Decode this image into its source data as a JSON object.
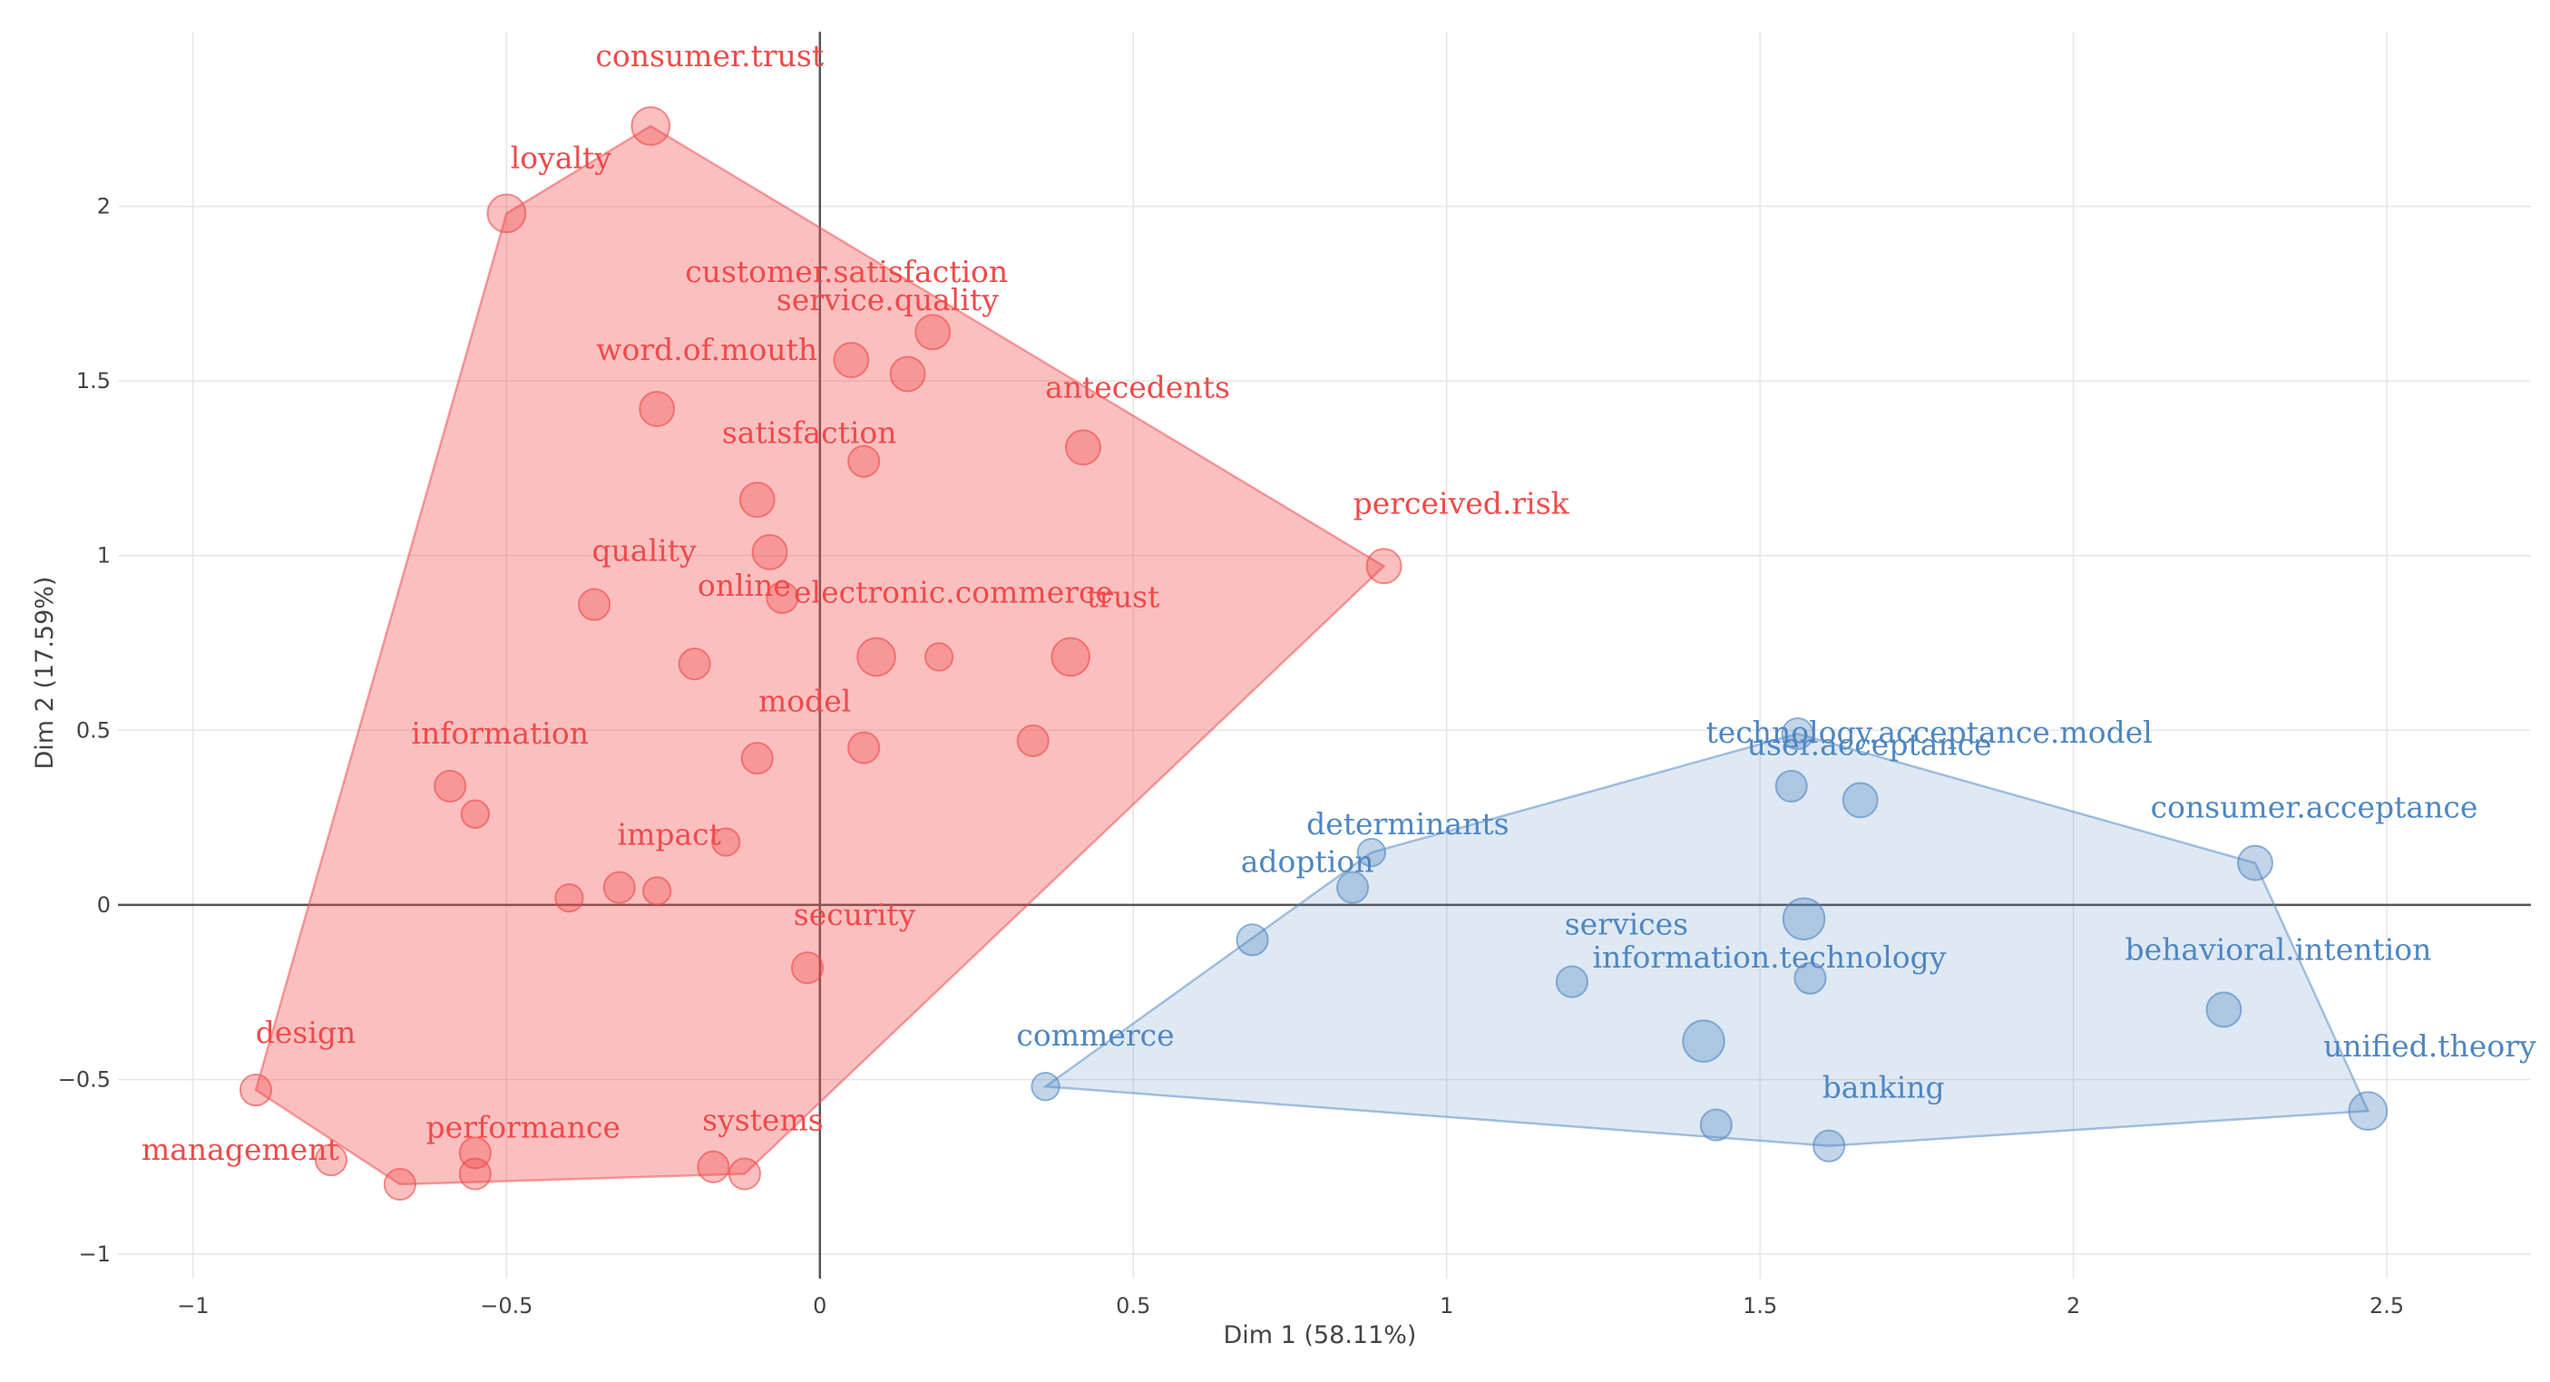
{
  "chart_data": {
    "type": "scatter",
    "xlabel": "Dim 1 (58.11%)",
    "ylabel": "Dim 2 (17.59%)",
    "xlim": [
      -1.12,
      2.73
    ],
    "ylim": [
      -1.07,
      2.5
    ],
    "xticks": [
      -1,
      -0.5,
      0,
      0.5,
      1,
      1.5,
      2,
      2.5
    ],
    "yticks": [
      -1,
      -0.5,
      0,
      0.5,
      1,
      1.5,
      2
    ],
    "xtick_labels": [
      "−1",
      "−0.5",
      "0",
      "0.5",
      "1",
      "1.5",
      "2",
      "2.5"
    ],
    "ytick_labels": [
      "−1",
      "−0.5",
      "0",
      "0.5",
      "1",
      "1.5",
      "2"
    ],
    "grid": true,
    "clusters": [
      {
        "name": "cluster-1",
        "color": "#f04a4a",
        "hull": [
          [
            -0.27,
            2.23
          ],
          [
            0.9,
            0.97
          ],
          [
            -0.12,
            -0.77
          ],
          [
            -0.67,
            -0.8
          ],
          [
            -0.9,
            -0.53
          ],
          [
            -0.5,
            1.98
          ]
        ],
        "points": [
          {
            "label": "consumer.trust",
            "x": -0.27,
            "y": 2.23,
            "size": 11
          },
          {
            "label": "loyalty",
            "x": -0.5,
            "y": 1.98,
            "size": 11
          },
          {
            "label": "service.quality",
            "x": 0.05,
            "y": 1.56,
            "size": 10
          },
          {
            "label": "customer.satisfaction",
            "x": 0.18,
            "y": 1.64,
            "size": 10
          },
          {
            "label": "word.of.mouth",
            "x": -0.26,
            "y": 1.42,
            "size": 10
          },
          {
            "label": "antecedents",
            "x": 0.42,
            "y": 1.31,
            "size": 10
          },
          {
            "label": "satisfaction",
            "x": 0.07,
            "y": 1.27,
            "size": 9
          },
          {
            "label": "perceived.risk",
            "x": 0.9,
            "y": 0.97,
            "size": 10
          },
          {
            "label": "quality",
            "x": -0.36,
            "y": 0.86,
            "size": 9
          },
          {
            "label": "online",
            "x": -0.06,
            "y": 0.88,
            "size": 9
          },
          {
            "label": "electronic.commerce",
            "x": 0.09,
            "y": 0.71,
            "size": 11
          },
          {
            "label": "trust",
            "x": 0.4,
            "y": 0.71,
            "size": 11
          },
          {
            "label": "model",
            "x": 0.07,
            "y": 0.45,
            "size": 9
          },
          {
            "label": "information",
            "x": -0.59,
            "y": 0.34,
            "size": 9
          },
          {
            "label": "impact",
            "x": -0.32,
            "y": 0.05,
            "size": 9
          },
          {
            "label": "security",
            "x": -0.02,
            "y": -0.18,
            "size": 9
          },
          {
            "label": "design",
            "x": -0.9,
            "y": -0.53,
            "size": 9
          },
          {
            "label": "management",
            "x": -0.78,
            "y": -0.73,
            "size": 9
          },
          {
            "label": "performance",
            "x": -0.55,
            "y": -0.71,
            "size": 9
          },
          {
            "label": "systems",
            "x": -0.12,
            "y": -0.77,
            "size": 9
          },
          {
            "label": "",
            "x": 0.14,
            "y": 1.52,
            "size": 10
          },
          {
            "label": "",
            "x": -0.1,
            "y": 1.16,
            "size": 10
          },
          {
            "label": "",
            "x": -0.08,
            "y": 1.01,
            "size": 10
          },
          {
            "label": "",
            "x": -0.2,
            "y": 0.69,
            "size": 9
          },
          {
            "label": "",
            "x": 0.19,
            "y": 0.71,
            "size": 8
          },
          {
            "label": "",
            "x": 0.34,
            "y": 0.47,
            "size": 9
          },
          {
            "label": "",
            "x": -0.1,
            "y": 0.42,
            "size": 9
          },
          {
            "label": "",
            "x": -0.55,
            "y": 0.26,
            "size": 8
          },
          {
            "label": "",
            "x": -0.15,
            "y": 0.18,
            "size": 8
          },
          {
            "label": "",
            "x": -0.4,
            "y": 0.02,
            "size": 8
          },
          {
            "label": "",
            "x": -0.26,
            "y": 0.04,
            "size": 8
          },
          {
            "label": "",
            "x": -0.67,
            "y": -0.8,
            "size": 9
          },
          {
            "label": "",
            "x": -0.55,
            "y": -0.77,
            "size": 9
          },
          {
            "label": "",
            "x": -0.17,
            "y": -0.75,
            "size": 9
          }
        ]
      },
      {
        "name": "cluster-2",
        "color": "#4f87c1",
        "hull": [
          [
            1.56,
            0.49
          ],
          [
            2.29,
            0.12
          ],
          [
            2.47,
            -0.59
          ],
          [
            1.61,
            -0.69
          ],
          [
            0.36,
            -0.52
          ],
          [
            0.88,
            0.15
          ]
        ],
        "points": [
          {
            "label": "technology.acceptance.model",
            "x": 1.56,
            "y": 0.49,
            "size": 9
          },
          {
            "label": "consumer.acceptance",
            "x": 2.29,
            "y": 0.12,
            "size": 10
          },
          {
            "label": "determinants",
            "x": 0.88,
            "y": 0.15,
            "size": 8
          },
          {
            "label": "user.acceptance",
            "x": 1.66,
            "y": 0.3,
            "size": 10
          },
          {
            "label": "adoption",
            "x": 0.85,
            "y": 0.05,
            "size": 9
          },
          {
            "label": "services",
            "x": 1.2,
            "y": -0.22,
            "size": 9
          },
          {
            "label": "information.technology",
            "x": 1.58,
            "y": -0.21,
            "size": 9
          },
          {
            "label": "behavioral.intention",
            "x": 2.24,
            "y": -0.3,
            "size": 10
          },
          {
            "label": "commerce",
            "x": 0.36,
            "y": -0.52,
            "size": 8
          },
          {
            "label": "unified.theory",
            "x": 2.47,
            "y": -0.59,
            "size": 11
          },
          {
            "label": "banking",
            "x": 1.61,
            "y": -0.69,
            "size": 9
          },
          {
            "label": "",
            "x": 1.55,
            "y": 0.34,
            "size": 9
          },
          {
            "label": "",
            "x": 1.57,
            "y": -0.04,
            "size": 12
          },
          {
            "label": "",
            "x": 0.69,
            "y": -0.1,
            "size": 9
          },
          {
            "label": "",
            "x": 1.41,
            "y": -0.39,
            "size": 12
          },
          {
            "label": "",
            "x": 1.43,
            "y": -0.63,
            "size": 9
          }
        ]
      }
    ]
  }
}
